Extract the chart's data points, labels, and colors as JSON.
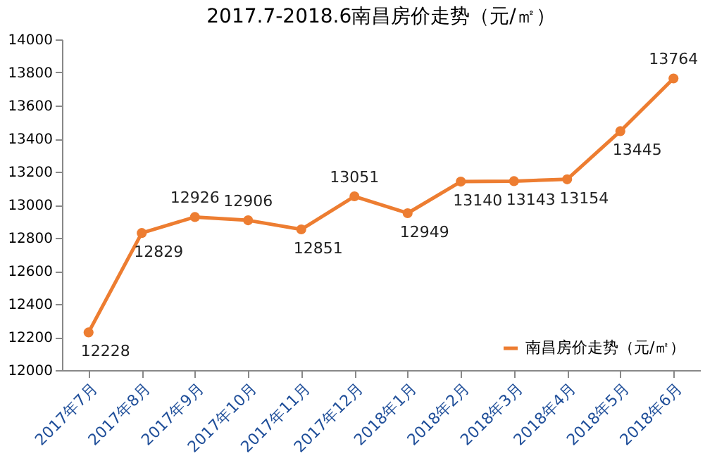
{
  "chart_data": {
    "type": "line",
    "title": "2017.7-2018.6南昌房价走势（元/㎡）",
    "categories": [
      "2017年7月",
      "2017年8月",
      "2017年9月",
      "2017年10月",
      "2017年11月",
      "2017年12月",
      "2018年1月",
      "2018年2月",
      "2018年3月",
      "2018年4月",
      "2018年5月",
      "2018年6月"
    ],
    "series": [
      {
        "name": "南昌房价走势（元/㎡）",
        "color": "#ed7d31",
        "values": [
          12228,
          12829,
          12926,
          12906,
          12851,
          13051,
          12949,
          13140,
          13143,
          13154,
          13445,
          13764
        ]
      }
    ],
    "ylim": [
      12000,
      14000
    ],
    "yticks": [
      12000,
      12200,
      12400,
      12600,
      12800,
      13000,
      13200,
      13400,
      13600,
      13800,
      14000
    ],
    "grid": false,
    "legend": "bottom right",
    "marker": "circle",
    "line_style": "solid",
    "data_labels": true
  }
}
